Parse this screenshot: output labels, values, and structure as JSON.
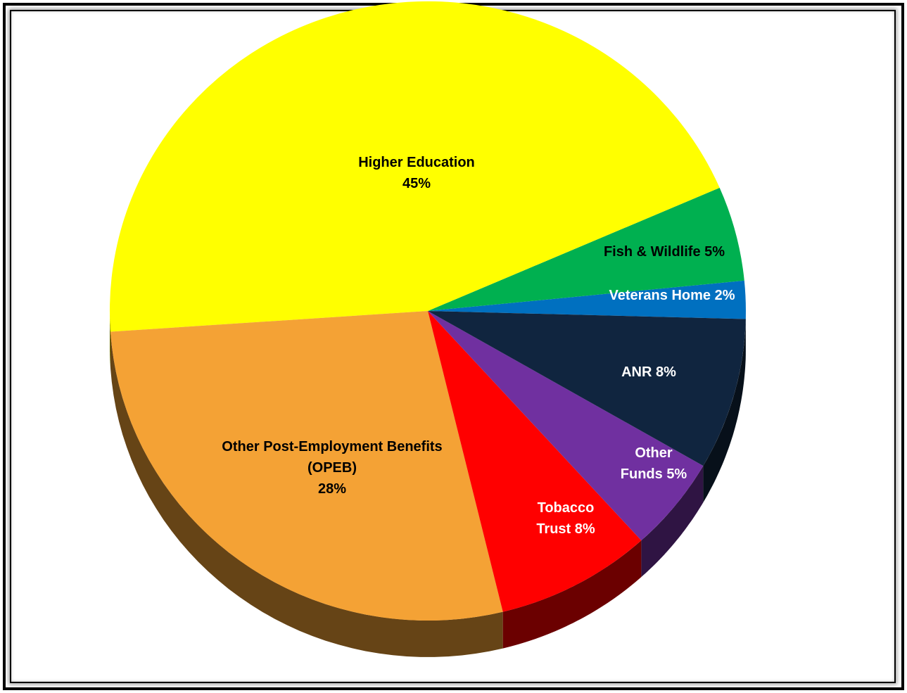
{
  "chart_data": {
    "type": "pie",
    "title": "",
    "slices": [
      {
        "name": "Veterans Home",
        "percent": 2,
        "label_lines": [
          "Veterans Home 2%"
        ],
        "color": "#0070C0",
        "text_color": "#ffffff"
      },
      {
        "name": "Fish & Wildlife",
        "percent": 5,
        "label_lines": [
          "Fish & Wildlife 5%"
        ],
        "color": "#00B050",
        "text_color": "#000000"
      },
      {
        "name": "Higher Education",
        "percent": 45,
        "label_lines": [
          "Higher Education",
          "45%"
        ],
        "color": "#FFFF00",
        "text_color": "#000000"
      },
      {
        "name": "Other Post-Employment Benefits (OPEB)",
        "percent": 28,
        "label_lines": [
          "Other Post-Employment Benefits",
          "(OPEB)",
          "28%"
        ],
        "color": "#F4A235",
        "text_color": "#000000"
      },
      {
        "name": "Tobacco Trust",
        "percent": 8,
        "label_lines": [
          "Tobacco",
          "Trust 8%"
        ],
        "color": "#FF0000",
        "text_color": "#ffffff"
      },
      {
        "name": "Other Funds",
        "percent": 5,
        "label_lines": [
          "Other",
          "Funds 5%"
        ],
        "color": "#7030A0",
        "text_color": "#ffffff"
      },
      {
        "name": "ANR",
        "percent": 8,
        "label_lines": [
          "ANR 8%"
        ],
        "color": "#10253F",
        "text_color": "#ffffff"
      }
    ],
    "legend": "none",
    "style": "3d-tilted"
  }
}
